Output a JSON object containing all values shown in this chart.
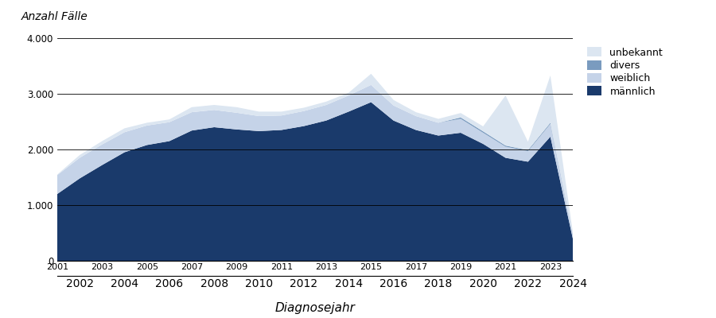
{
  "years": [
    2001,
    2002,
    2003,
    2004,
    2005,
    2006,
    2007,
    2008,
    2009,
    2010,
    2011,
    2012,
    2013,
    2014,
    2015,
    2016,
    2017,
    2018,
    2019,
    2020,
    2021,
    2022,
    2023,
    2024
  ],
  "maennlich": [
    1200,
    1480,
    1720,
    1950,
    2080,
    2150,
    2340,
    2400,
    2360,
    2330,
    2350,
    2420,
    2520,
    2680,
    2850,
    2520,
    2350,
    2250,
    2300,
    2100,
    1850,
    1780,
    2230,
    400
  ],
  "weiblich": [
    340,
    370,
    370,
    360,
    350,
    340,
    330,
    310,
    300,
    270,
    260,
    270,
    280,
    290,
    310,
    270,
    250,
    230,
    250,
    200,
    200,
    190,
    230,
    80
  ],
  "divers": [
    0,
    0,
    0,
    0,
    0,
    0,
    0,
    0,
    0,
    0,
    0,
    0,
    0,
    0,
    0,
    0,
    0,
    0,
    25,
    25,
    20,
    18,
    20,
    5
  ],
  "unbekannt": [
    10,
    50,
    60,
    70,
    50,
    50,
    90,
    90,
    100,
    80,
    70,
    60,
    60,
    50,
    200,
    100,
    70,
    70,
    80,
    90,
    900,
    150,
    850,
    30
  ],
  "color_maennlich": "#1a3a6b",
  "color_weiblich": "#c5d3e8",
  "color_divers": "#7a9bbf",
  "color_unbekannt": "#dce6f1",
  "ylabel": "Anzahl Fälle",
  "xlabel": "Diagnosejahr",
  "ylim": [
    0,
    4000
  ],
  "yticks": [
    0,
    1000,
    2000,
    3000,
    4000
  ],
  "legend_labels": [
    "unbekannt",
    "divers",
    "weiblich",
    "männlich"
  ],
  "background_color": "#ffffff",
  "odd_years": [
    2001,
    2003,
    2005,
    2007,
    2009,
    2011,
    2013,
    2015,
    2017,
    2019,
    2021,
    2023
  ],
  "even_years": [
    2002,
    2004,
    2006,
    2008,
    2010,
    2012,
    2014,
    2016,
    2018,
    2020,
    2022,
    2024
  ]
}
